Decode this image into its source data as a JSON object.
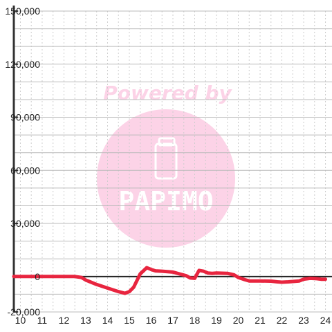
{
  "chart_data": {
    "type": "line",
    "title": "",
    "xlabel": "",
    "ylabel": "",
    "xlim": [
      9.7,
      24.3
    ],
    "ylim": [
      -20000,
      150000
    ],
    "x_ticks": [
      10,
      11,
      12,
      13,
      14,
      15,
      16,
      17,
      18,
      19,
      20,
      21,
      22,
      23,
      24
    ],
    "x_tick_labels": [
      "10",
      "11",
      "12",
      "13",
      "14",
      "15",
      "16",
      "17",
      "18",
      "19",
      "20",
      "21",
      "22",
      "23",
      "24"
    ],
    "y_ticks": [
      -20000,
      0,
      30000,
      60000,
      90000,
      120000,
      150000
    ],
    "y_tick_labels": [
      "-20,000",
      "0",
      "30,000",
      "60,000",
      "90,000",
      "120,000",
      "150,000"
    ],
    "grid": true,
    "legend": "none",
    "series": [
      {
        "color": "#e8253f",
        "x": [
          9.7,
          10.0,
          11.0,
          12.0,
          12.5,
          12.8,
          13.0,
          13.5,
          14.0,
          14.5,
          14.8,
          15.0,
          15.2,
          15.5,
          15.8,
          16.0,
          16.2,
          16.5,
          17.0,
          17.3,
          17.6,
          17.8,
          18.0,
          18.2,
          18.4,
          18.6,
          18.8,
          19.0,
          19.5,
          19.8,
          20.0,
          20.3,
          20.5,
          21.0,
          21.5,
          21.8,
          22.0,
          22.3,
          22.8,
          23.0,
          23.3,
          23.6,
          23.8,
          24.0
        ],
        "values": [
          0,
          0,
          0,
          0,
          0,
          -500,
          -2000,
          -4500,
          -6500,
          -8500,
          -9500,
          -8500,
          -6000,
          1500,
          5000,
          4000,
          3200,
          3000,
          2500,
          1500,
          500,
          -800,
          -1000,
          3500,
          3000,
          2000,
          1800,
          2000,
          1800,
          1000,
          -500,
          -1800,
          -2500,
          -2500,
          -2600,
          -3000,
          -3200,
          -3000,
          -2500,
          -1500,
          -1000,
          -1200,
          -1500,
          -1500
        ]
      }
    ]
  },
  "watermark": {
    "text": "Powered by",
    "brand": "PAPIMO",
    "color": "#fcd3e7"
  },
  "colors": {
    "axis": "#333333",
    "grid_major": "#bbbbbb",
    "grid_minor": "#cccccc",
    "zero_line": "#222222"
  }
}
